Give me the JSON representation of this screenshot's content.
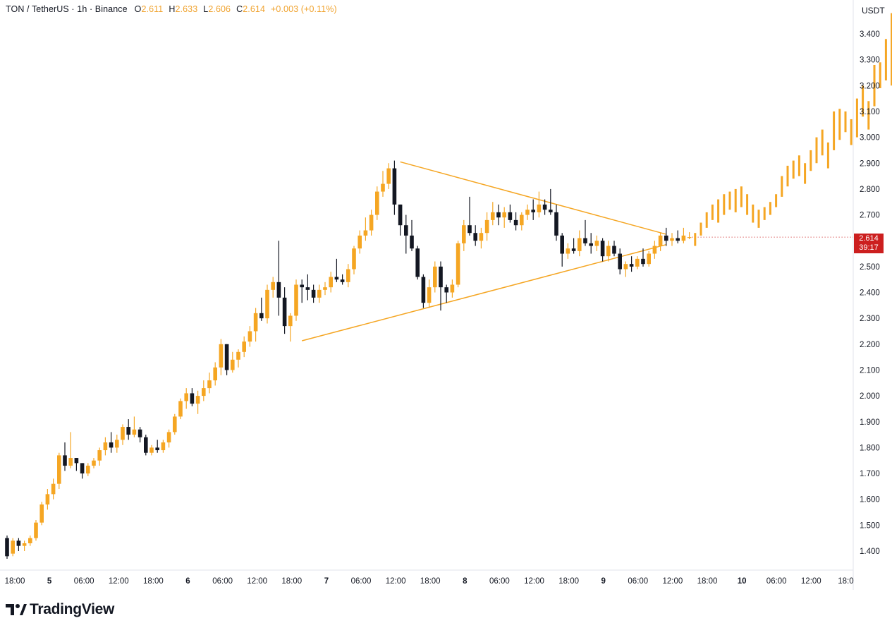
{
  "header": {
    "symbol": "TON / TetherUS · 1h · Binance",
    "open_label": "O",
    "open": "2.611",
    "high_label": "H",
    "high": "2.633",
    "low_label": "L",
    "low": "2.606",
    "close_label": "C",
    "close": "2.614",
    "change": "+0.003 (+0.11%)"
  },
  "currency": "USDT",
  "price_tag": {
    "price": "2.614",
    "countdown": "39:17"
  },
  "logo": {
    "text": "TradingView",
    "icon": "tradingview-logo-icon"
  },
  "colors": {
    "up": "#f5a623",
    "down": "#131722",
    "pattern": "#f5a623",
    "projection": "#f5a623",
    "price_tag": "#cc1f1f"
  },
  "chart_data": {
    "type": "candlestick",
    "title": "TON / TetherUS · 1h · Binance",
    "ylim": [
      1.34,
      3.5
    ],
    "y_ticks": [
      "3.400",
      "3.300",
      "3.200",
      "3.100",
      "3.000",
      "2.900",
      "2.800",
      "2.700",
      "2.600",
      "2.500",
      "2.400",
      "2.300",
      "2.200",
      "2.100",
      "2.000",
      "1.900",
      "1.800",
      "1.700",
      "1.600",
      "1.500",
      "1.400"
    ],
    "x_ticks": [
      {
        "label": "18:00",
        "bold": false
      },
      {
        "label": "5",
        "bold": true
      },
      {
        "label": "06:00",
        "bold": false
      },
      {
        "label": "12:00",
        "bold": false
      },
      {
        "label": "18:00",
        "bold": false
      },
      {
        "label": "6",
        "bold": true
      },
      {
        "label": "06:00",
        "bold": false
      },
      {
        "label": "12:00",
        "bold": false
      },
      {
        "label": "18:00",
        "bold": false
      },
      {
        "label": "7",
        "bold": true
      },
      {
        "label": "06:00",
        "bold": false
      },
      {
        "label": "12:00",
        "bold": false
      },
      {
        "label": "18:00",
        "bold": false
      },
      {
        "label": "8",
        "bold": true
      },
      {
        "label": "06:00",
        "bold": false
      },
      {
        "label": "12:00",
        "bold": false
      },
      {
        "label": "18:00",
        "bold": false
      },
      {
        "label": "9",
        "bold": true
      },
      {
        "label": "06:00",
        "bold": false
      },
      {
        "label": "12:00",
        "bold": false
      },
      {
        "label": "18:00",
        "bold": false
      },
      {
        "label": "10",
        "bold": true
      },
      {
        "label": "06:00",
        "bold": false
      },
      {
        "label": "12:00",
        "bold": false
      },
      {
        "label": "18:0",
        "bold": false
      }
    ],
    "candles": [
      [
        1.45,
        1.46,
        1.37,
        1.38
      ],
      [
        1.39,
        1.45,
        1.38,
        1.44
      ],
      [
        1.44,
        1.45,
        1.4,
        1.42
      ],
      [
        1.42,
        1.44,
        1.4,
        1.43
      ],
      [
        1.43,
        1.46,
        1.42,
        1.45
      ],
      [
        1.45,
        1.52,
        1.44,
        1.51
      ],
      [
        1.51,
        1.59,
        1.5,
        1.58
      ],
      [
        1.58,
        1.64,
        1.56,
        1.62
      ],
      [
        1.62,
        1.68,
        1.6,
        1.66
      ],
      [
        1.66,
        1.78,
        1.64,
        1.77
      ],
      [
        1.77,
        1.82,
        1.71,
        1.73
      ],
      [
        1.73,
        1.86,
        1.72,
        1.76
      ],
      [
        1.76,
        1.76,
        1.71,
        1.74
      ],
      [
        1.74,
        1.74,
        1.68,
        1.7
      ],
      [
        1.7,
        1.74,
        1.69,
        1.73
      ],
      [
        1.73,
        1.76,
        1.72,
        1.75
      ],
      [
        1.75,
        1.8,
        1.73,
        1.79
      ],
      [
        1.79,
        1.84,
        1.77,
        1.82
      ],
      [
        1.82,
        1.86,
        1.78,
        1.8
      ],
      [
        1.8,
        1.85,
        1.78,
        1.83
      ],
      [
        1.83,
        1.89,
        1.81,
        1.88
      ],
      [
        1.88,
        1.91,
        1.83,
        1.85
      ],
      [
        1.85,
        1.92,
        1.84,
        1.87
      ],
      [
        1.87,
        1.88,
        1.82,
        1.84
      ],
      [
        1.84,
        1.85,
        1.77,
        1.78
      ],
      [
        1.78,
        1.81,
        1.77,
        1.8
      ],
      [
        1.8,
        1.83,
        1.78,
        1.79
      ],
      [
        1.79,
        1.83,
        1.78,
        1.82
      ],
      [
        1.82,
        1.87,
        1.8,
        1.86
      ],
      [
        1.86,
        1.93,
        1.85,
        1.92
      ],
      [
        1.92,
        1.99,
        1.91,
        1.98
      ],
      [
        1.98,
        2.03,
        1.95,
        2.01
      ],
      [
        2.01,
        2.03,
        1.96,
        1.97
      ],
      [
        1.97,
        2.02,
        1.93,
        2.0
      ],
      [
        2.0,
        2.06,
        1.98,
        2.03
      ],
      [
        2.03,
        2.09,
        2.01,
        2.06
      ],
      [
        2.06,
        2.13,
        2.04,
        2.11
      ],
      [
        2.11,
        2.22,
        2.08,
        2.2
      ],
      [
        2.2,
        2.2,
        2.08,
        2.1
      ],
      [
        2.1,
        2.17,
        2.09,
        2.14
      ],
      [
        2.14,
        2.18,
        2.11,
        2.17
      ],
      [
        2.17,
        2.23,
        2.15,
        2.21
      ],
      [
        2.21,
        2.27,
        2.19,
        2.25
      ],
      [
        2.25,
        2.34,
        2.21,
        2.32
      ],
      [
        2.32,
        2.38,
        2.29,
        2.3
      ],
      [
        2.3,
        2.43,
        2.28,
        2.41
      ],
      [
        2.41,
        2.46,
        2.38,
        2.44
      ],
      [
        2.44,
        2.6,
        2.31,
        2.38
      ],
      [
        2.38,
        2.42,
        2.24,
        2.27
      ],
      [
        2.27,
        2.32,
        2.21,
        2.31
      ],
      [
        2.31,
        2.45,
        2.29,
        2.43
      ],
      [
        2.43,
        2.45,
        2.36,
        2.42
      ],
      [
        2.42,
        2.47,
        2.37,
        2.41
      ],
      [
        2.41,
        2.43,
        2.36,
        2.38
      ],
      [
        2.38,
        2.43,
        2.36,
        2.41
      ],
      [
        2.41,
        2.44,
        2.39,
        2.42
      ],
      [
        2.42,
        2.48,
        2.4,
        2.46
      ],
      [
        2.46,
        2.53,
        2.44,
        2.45
      ],
      [
        2.45,
        2.47,
        2.43,
        2.44
      ],
      [
        2.44,
        2.51,
        2.42,
        2.49
      ],
      [
        2.49,
        2.58,
        2.47,
        2.57
      ],
      [
        2.57,
        2.64,
        2.55,
        2.62
      ],
      [
        2.62,
        2.69,
        2.6,
        2.64
      ],
      [
        2.64,
        2.72,
        2.62,
        2.7
      ],
      [
        2.7,
        2.81,
        2.68,
        2.79
      ],
      [
        2.79,
        2.87,
        2.77,
        2.82
      ],
      [
        2.82,
        2.9,
        2.8,
        2.88
      ],
      [
        2.88,
        2.91,
        2.7,
        2.74
      ],
      [
        2.74,
        2.74,
        2.62,
        2.66
      ],
      [
        2.66,
        2.7,
        2.55,
        2.62
      ],
      [
        2.62,
        2.68,
        2.56,
        2.57
      ],
      [
        2.57,
        2.58,
        2.45,
        2.46
      ],
      [
        2.46,
        2.47,
        2.34,
        2.36
      ],
      [
        2.36,
        2.45,
        2.34,
        2.42
      ],
      [
        2.42,
        2.52,
        2.4,
        2.5
      ],
      [
        2.5,
        2.52,
        2.33,
        2.42
      ],
      [
        2.42,
        2.43,
        2.36,
        2.4
      ],
      [
        2.4,
        2.45,
        2.38,
        2.43
      ],
      [
        2.43,
        2.6,
        2.42,
        2.59
      ],
      [
        2.59,
        2.68,
        2.56,
        2.66
      ],
      [
        2.66,
        2.77,
        2.62,
        2.63
      ],
      [
        2.63,
        2.66,
        2.58,
        2.6
      ],
      [
        2.6,
        2.65,
        2.57,
        2.63
      ],
      [
        2.63,
        2.71,
        2.6,
        2.68
      ],
      [
        2.68,
        2.75,
        2.66,
        2.71
      ],
      [
        2.71,
        2.74,
        2.66,
        2.69
      ],
      [
        2.69,
        2.73,
        2.65,
        2.71
      ],
      [
        2.71,
        2.74,
        2.67,
        2.68
      ],
      [
        2.68,
        2.71,
        2.64,
        2.66
      ],
      [
        2.66,
        2.71,
        2.64,
        2.7
      ],
      [
        2.7,
        2.74,
        2.68,
        2.72
      ],
      [
        2.72,
        2.76,
        2.68,
        2.71
      ],
      [
        2.71,
        2.79,
        2.69,
        2.74
      ],
      [
        2.74,
        2.76,
        2.7,
        2.72
      ],
      [
        2.72,
        2.8,
        2.7,
        2.71
      ],
      [
        2.71,
        2.74,
        2.6,
        2.62
      ],
      [
        2.62,
        2.63,
        2.5,
        2.55
      ],
      [
        2.55,
        2.59,
        2.53,
        2.57
      ],
      [
        2.57,
        2.61,
        2.55,
        2.56
      ],
      [
        2.56,
        2.64,
        2.54,
        2.61
      ],
      [
        2.61,
        2.68,
        2.58,
        2.59
      ],
      [
        2.59,
        2.63,
        2.55,
        2.58
      ],
      [
        2.58,
        2.62,
        2.56,
        2.6
      ],
      [
        2.6,
        2.61,
        2.52,
        2.54
      ],
      [
        2.54,
        2.6,
        2.52,
        2.58
      ],
      [
        2.58,
        2.6,
        2.54,
        2.55
      ],
      [
        2.55,
        2.57,
        2.47,
        2.49
      ],
      [
        2.49,
        2.52,
        2.46,
        2.51
      ],
      [
        2.51,
        2.54,
        2.48,
        2.5
      ],
      [
        2.5,
        2.54,
        2.49,
        2.53
      ],
      [
        2.53,
        2.57,
        2.5,
        2.51
      ],
      [
        2.51,
        2.56,
        2.5,
        2.55
      ],
      [
        2.55,
        2.6,
        2.53,
        2.58
      ],
      [
        2.58,
        2.63,
        2.56,
        2.62
      ],
      [
        2.62,
        2.65,
        2.58,
        2.6
      ],
      [
        2.6,
        2.63,
        2.58,
        2.61
      ],
      [
        2.61,
        2.64,
        2.59,
        2.6
      ],
      [
        2.6,
        2.65,
        2.59,
        2.62
      ],
      [
        2.611,
        2.633,
        2.606,
        2.614
      ]
    ],
    "projection": [
      [
        2.58,
        2.63
      ],
      [
        2.62,
        2.67
      ],
      [
        2.65,
        2.71
      ],
      [
        2.68,
        2.74
      ],
      [
        2.67,
        2.76
      ],
      [
        2.7,
        2.78
      ],
      [
        2.72,
        2.79
      ],
      [
        2.71,
        2.8
      ],
      [
        2.73,
        2.81
      ],
      [
        2.7,
        2.78
      ],
      [
        2.67,
        2.74
      ],
      [
        2.65,
        2.72
      ],
      [
        2.68,
        2.73
      ],
      [
        2.7,
        2.75
      ],
      [
        2.73,
        2.78
      ],
      [
        2.77,
        2.85
      ],
      [
        2.81,
        2.89
      ],
      [
        2.84,
        2.91
      ],
      [
        2.85,
        2.93
      ],
      [
        2.82,
        2.9
      ],
      [
        2.87,
        2.95
      ],
      [
        2.9,
        3.0
      ],
      [
        2.93,
        3.03
      ],
      [
        2.88,
        2.98
      ],
      [
        2.95,
        3.1
      ],
      [
        2.99,
        3.11
      ],
      [
        3.02,
        3.1
      ],
      [
        2.97,
        3.07
      ],
      [
        3.0,
        3.15
      ],
      [
        3.08,
        3.2
      ],
      [
        3.03,
        3.14
      ],
      [
        3.12,
        3.28
      ],
      [
        3.19,
        3.29
      ],
      [
        3.22,
        3.38
      ],
      [
        3.2,
        3.48
      ]
    ],
    "triangle": {
      "upper": [
        [
          68,
          2.905
        ],
        [
          114,
          2.625
        ]
      ],
      "lower": [
        [
          51,
          2.213
        ],
        [
          114,
          2.585
        ]
      ]
    }
  }
}
